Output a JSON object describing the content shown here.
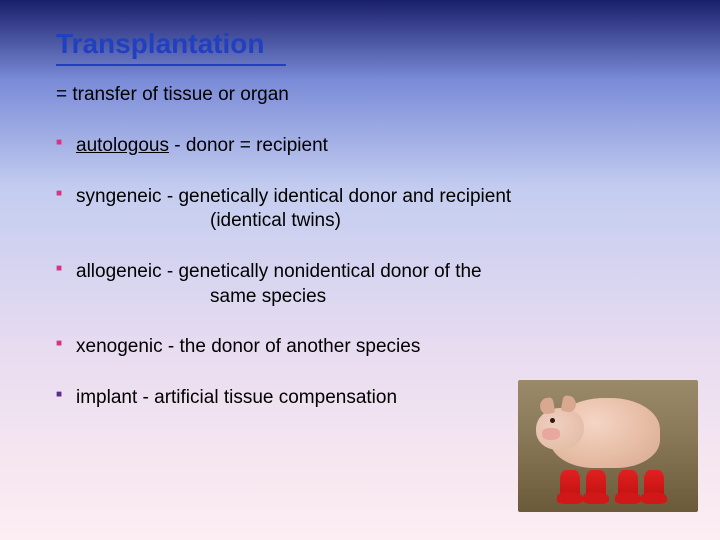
{
  "title": {
    "text": "Transplantation",
    "color": "#2040c0",
    "fontsize": 28,
    "underline_width": 230
  },
  "subtitle": {
    "text": "= transfer of tissue or organ",
    "fontsize": 19
  },
  "bullets": [
    {
      "term": "autologous",
      "rest": " - donor = recipient",
      "marker_color": "pink",
      "term_underline": true
    },
    {
      "term": "syngeneic",
      "rest": " - genetically identical donor and recipient",
      "cont": "(identical twins)",
      "marker_color": "pink",
      "term_underline": false
    },
    {
      "term": "allogeneic",
      "rest": " - genetically nonidentical donor of the",
      "cont": "same species",
      "marker_color": "pink",
      "term_underline": false
    },
    {
      "term": "xenogenic",
      "rest": " - the donor of another species",
      "marker_color": "pink",
      "term_underline": false
    },
    {
      "term": "implant",
      "rest": " - artificial tissue compensation",
      "marker_color": "purple",
      "term_underline": false
    }
  ],
  "image": {
    "description": "piglet wearing red boots",
    "position": "bottom-right",
    "width": 180,
    "height": 132,
    "boot_color": "#d01818",
    "pig_color": "#e8bfa8",
    "ground_color": "#8a7a5a"
  },
  "background": {
    "gradient_stops": [
      "#1a1f6b",
      "#7b8cd8",
      "#c4cdf0",
      "#e8dcf0",
      "#f5e6f0",
      "#fceef2"
    ]
  }
}
